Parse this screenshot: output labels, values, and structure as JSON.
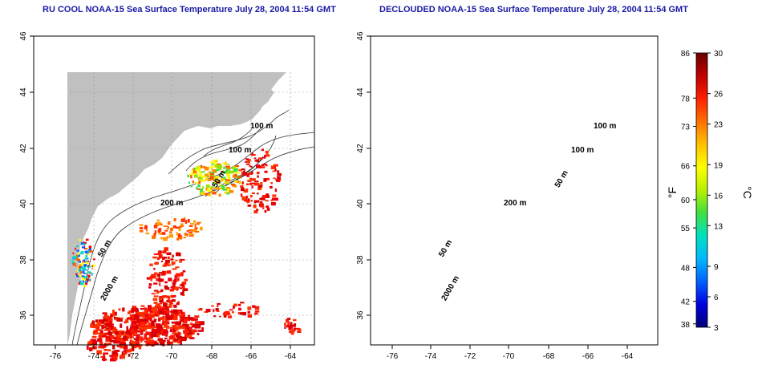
{
  "panels": [
    {
      "title": "RU COOL NOAA-15 Sea Surface Temperature July 28, 2004 11:54 GMT"
    },
    {
      "title": "DECLOUDED NOAA-15 Sea Surface Temperature July 28, 2004 11:54 GMT"
    }
  ],
  "axes": {
    "x_ticks": [
      "-76",
      "-74",
      "-72",
      "-70",
      "-68",
      "-66",
      "-64"
    ],
    "y_ticks": [
      "46",
      "44",
      "42",
      "40",
      "38",
      "36"
    ]
  },
  "contour_labels": {
    "left": [
      "100 m",
      "100 m",
      "50 m",
      "200 m",
      "50 m",
      "2000 m"
    ],
    "right": [
      "100 m",
      "100 m",
      "50 m",
      "200 m",
      "50 m",
      "2000 m"
    ]
  },
  "colorbar": {
    "unit_f": "°F",
    "unit_c": "°C",
    "f_ticks": [
      "86",
      "78",
      "73",
      "66",
      "60",
      "55",
      "48",
      "42",
      "38"
    ],
    "c_ticks": [
      "30",
      "26",
      "23",
      "19",
      "16",
      "13",
      "9",
      "6",
      "3"
    ],
    "colors": [
      "#00007a",
      "#0000e0",
      "#0060ff",
      "#00b8ff",
      "#00e0c0",
      "#40e040",
      "#b8f000",
      "#ffff00",
      "#ffc000",
      "#ff7000",
      "#ff2000",
      "#c00000",
      "#6a0000"
    ]
  },
  "colors": {
    "land": "#c0c0c0",
    "water": "#ffffff",
    "title": "#1a1aa6",
    "warm": "#e8000c",
    "orange": "#ff6a00"
  }
}
